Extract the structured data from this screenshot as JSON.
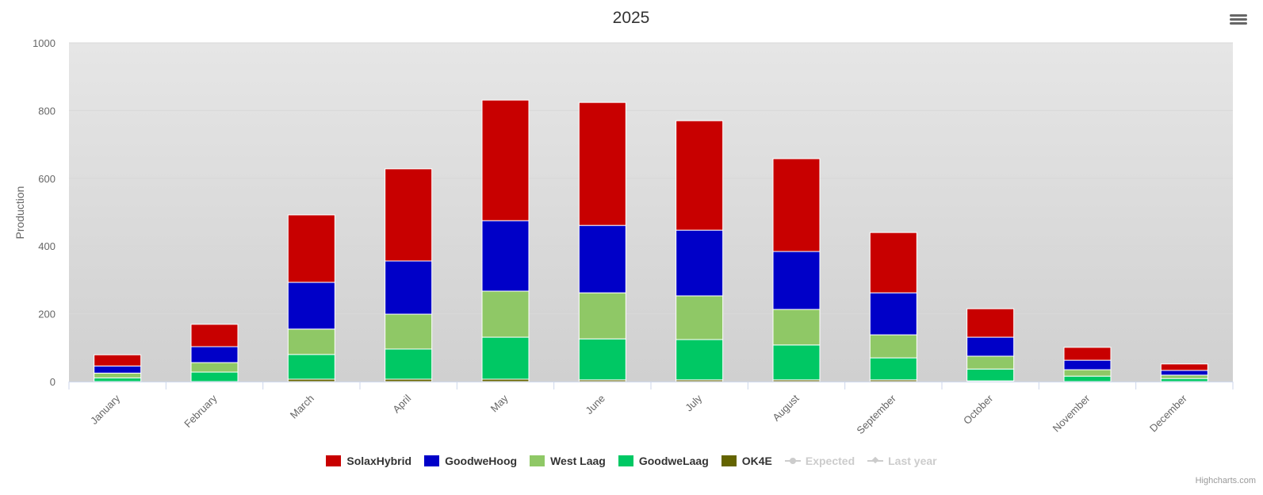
{
  "chart_data": {
    "type": "bar",
    "stacked": true,
    "title": "2025",
    "xlabel": "",
    "ylabel": "Production",
    "ylim": [
      0,
      1000
    ],
    "yticks": [
      0,
      200,
      400,
      600,
      800,
      1000
    ],
    "categories": [
      "January",
      "February",
      "March",
      "April",
      "May",
      "June",
      "July",
      "August",
      "September",
      "October",
      "November",
      "December"
    ],
    "series": [
      {
        "name": "SolaxHybrid",
        "color": "#c80000",
        "values": [
          33,
          66,
          199,
          272,
          356,
          363,
          323,
          274,
          178,
          84,
          38,
          19
        ]
      },
      {
        "name": "GoodweHoog",
        "color": "#0000c8",
        "values": [
          21,
          47,
          138,
          157,
          208,
          199,
          194,
          171,
          124,
          56,
          28,
          14
        ]
      },
      {
        "name": "West Laag",
        "color": "#8fc866",
        "values": [
          14,
          28,
          75,
          103,
          136,
          136,
          129,
          105,
          68,
          38,
          19,
          10
        ]
      },
      {
        "name": "GoodweLaag",
        "color": "#00c864",
        "values": [
          11,
          28,
          73,
          89,
          124,
          121,
          119,
          103,
          65,
          35,
          16,
          9
        ]
      },
      {
        "name": "OK4E",
        "color": "#646400",
        "values": [
          0,
          0,
          7,
          7,
          7,
          5,
          5,
          5,
          5,
          2,
          0,
          0
        ]
      }
    ],
    "hidden_series": [
      {
        "name": "Expected",
        "marker": "circle"
      },
      {
        "name": "Last year",
        "marker": "diamond"
      }
    ],
    "legend_position": "bottom"
  },
  "credit": "Highcharts.com"
}
